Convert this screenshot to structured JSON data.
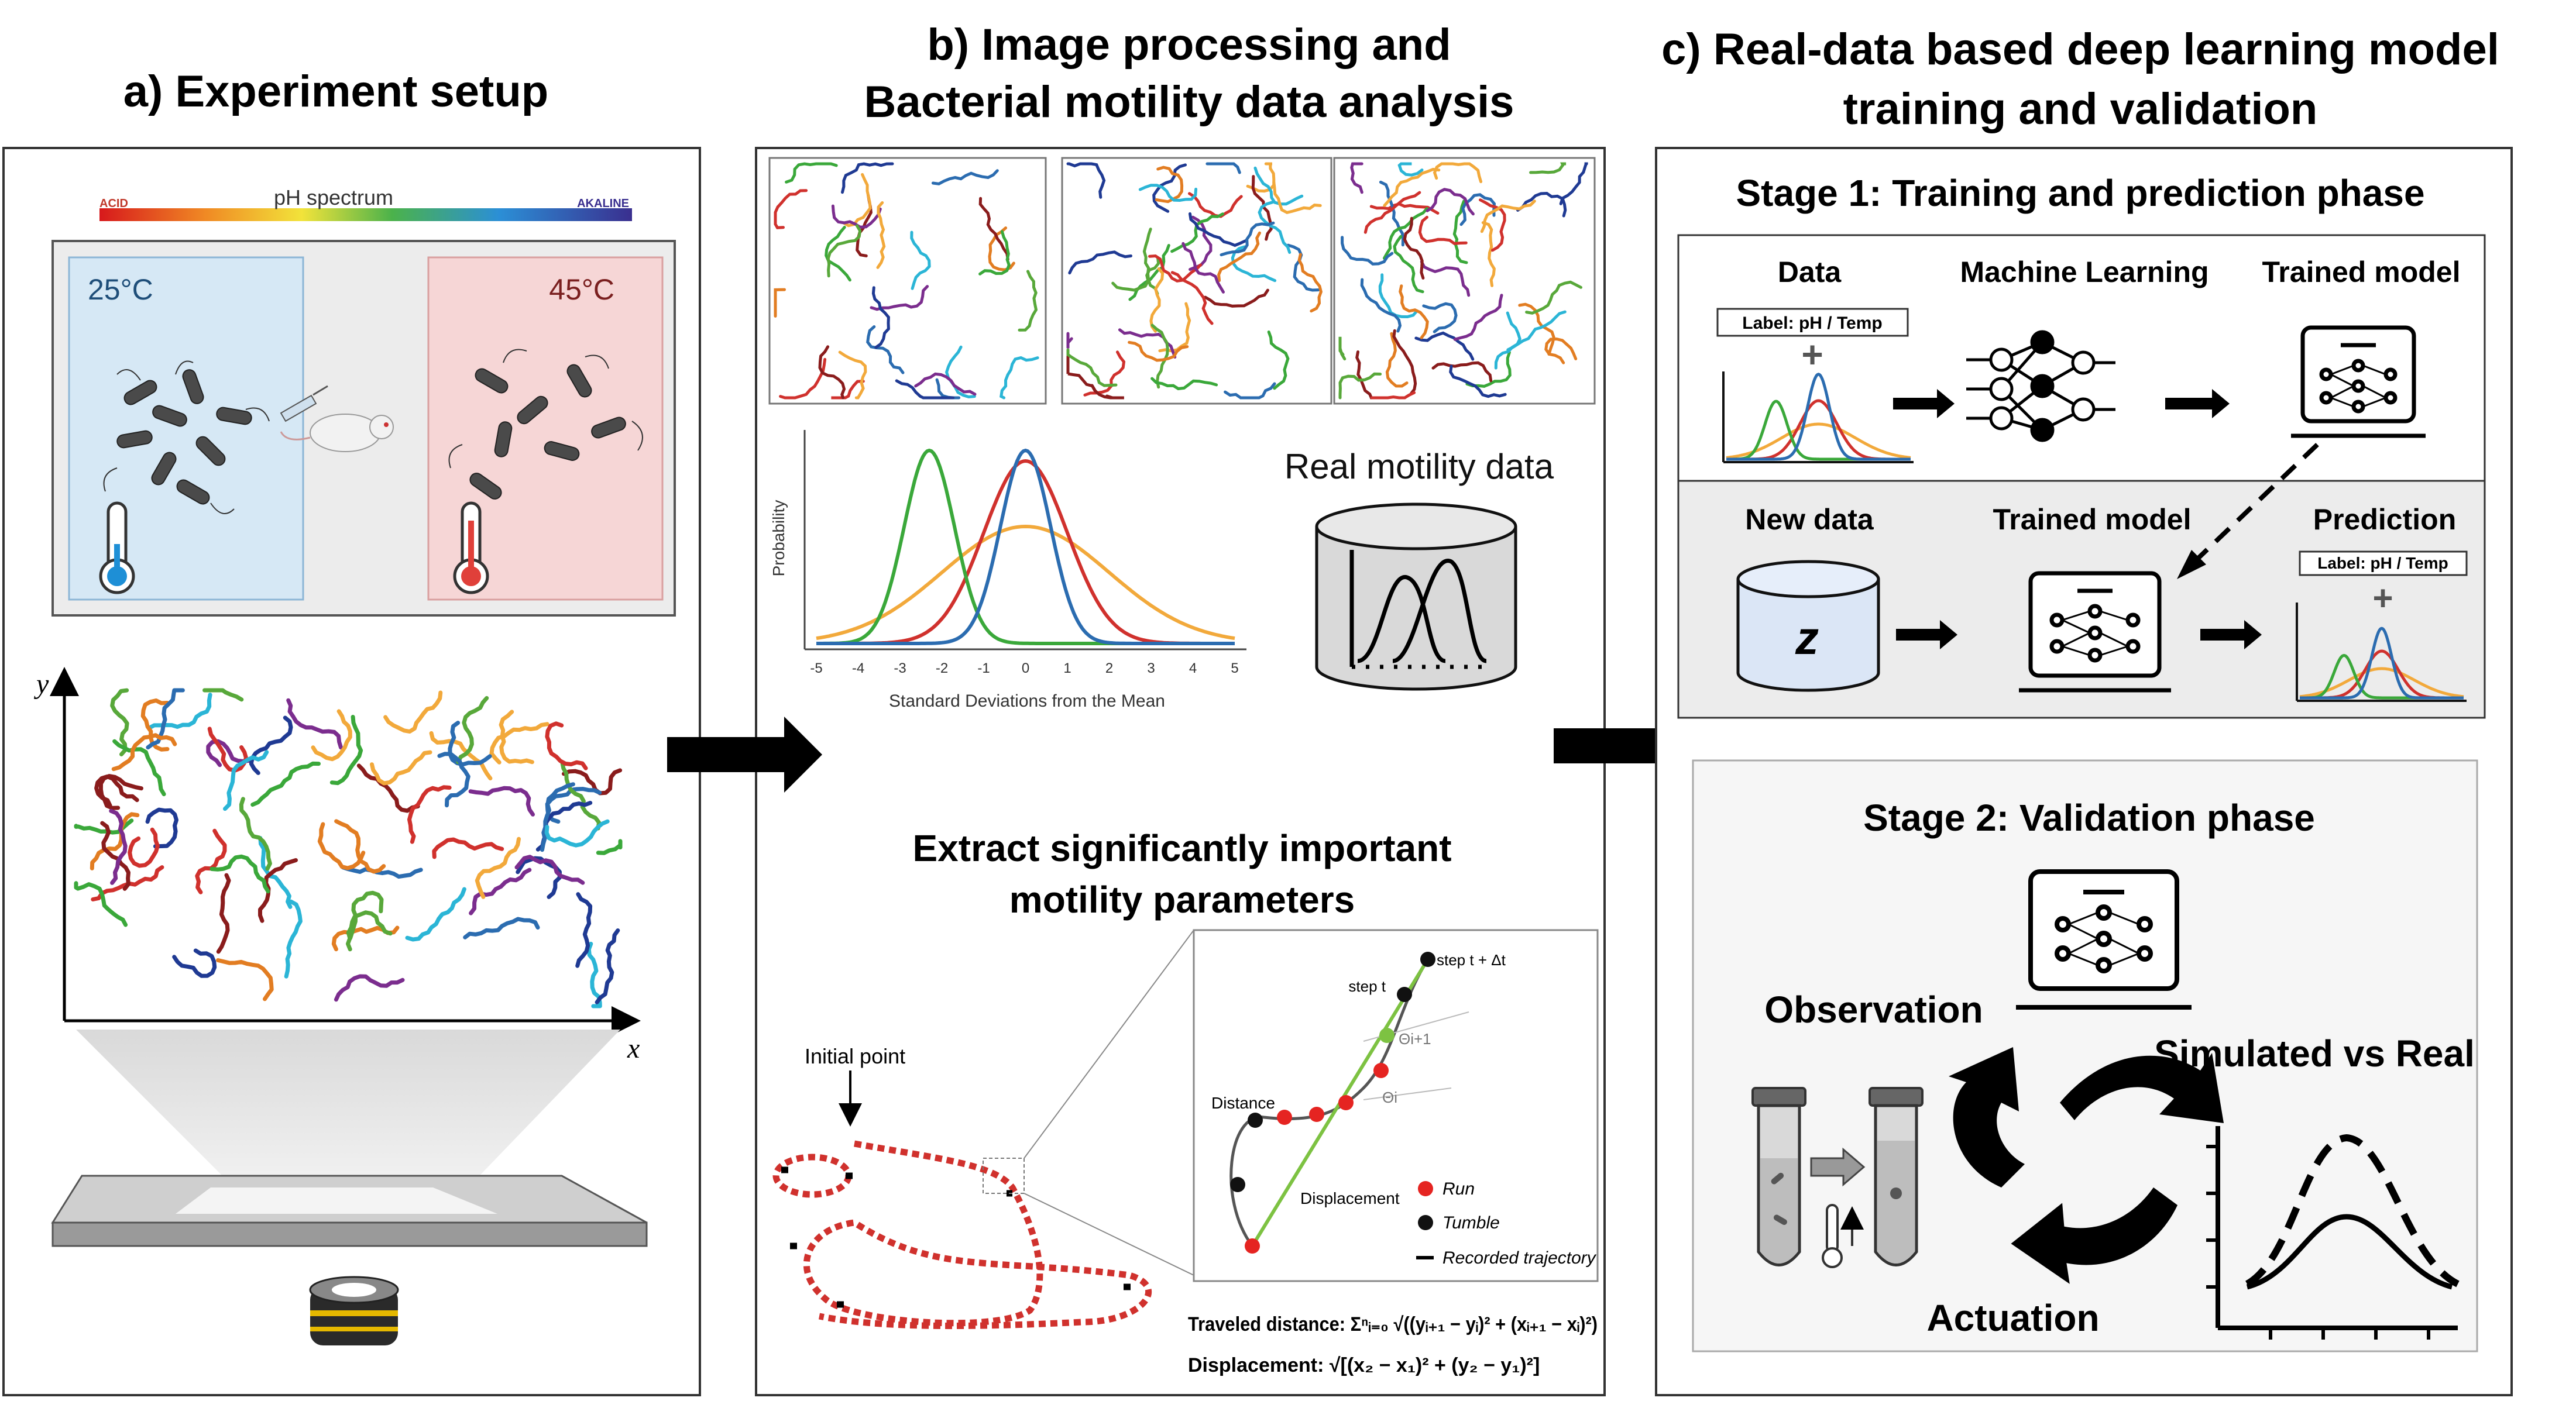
{
  "panel_a": {
    "title": "a) Experiment setup",
    "ph_spectrum": "pH spectrum",
    "acid": "ACID",
    "alkaline": "AKALINE",
    "cold_temp": "25°C",
    "hot_temp": "45°C",
    "axis_y": "y",
    "axis_x": "x"
  },
  "panel_b": {
    "title_line1": "b) Image processing and",
    "title_line2": "Bacterial motility data analysis",
    "real_motility": "Real motility data",
    "prob_label": "Probability",
    "std_label": "Standard Deviations from the Mean",
    "ticks": [
      "-5",
      "-4",
      "-3",
      "-2",
      "-1",
      "0",
      "1",
      "2",
      "3",
      "4",
      "5"
    ],
    "extract_line1": "Extract significantly important",
    "extract_line2": "motility parameters",
    "initial_point": "Initial point",
    "step_t": "step t",
    "step_t_dt": "step t + Δt",
    "theta_i1": "Θi+1",
    "theta_i": "Θi",
    "distance": "Distance",
    "displacement": "Displacement",
    "legend_run": "Run",
    "legend_tumble": "Tumble",
    "legend_recorded": "Recorded trajectory",
    "formula_traveled": "Traveled distance: Σⁿᵢ₌₀ √((yᵢ₊₁ − yᵢ)² + (xᵢ₊₁ − xᵢ)²)",
    "formula_displacement": "Displacement:  √[(x₂ − x₁)² + (y₂ − y₁)²]"
  },
  "panel_c": {
    "title_line1": "c) Real-data based deep learning model",
    "title_line2": "training and validation",
    "stage1": "Stage 1: Training and prediction phase",
    "data": "Data",
    "machine_learning": "Machine Learning",
    "trained_model": "Trained model",
    "label": "Label: pH / Temp",
    "new_data": "New data",
    "trained_model2": "Trained model",
    "prediction": "Prediction",
    "label2": "Label: pH / Temp",
    "z": "z",
    "stage2": "Stage 2: Validation phase",
    "observation": "Observation",
    "simulated_vs_real": "Simulated vs Real",
    "actuation": "Actuation"
  },
  "colors": {
    "blue": "#2b6cb0",
    "red": "#d0312d",
    "green": "#3aa83a",
    "orange": "#f2a93b",
    "cold_bg": "#d6e8f5",
    "hot_bg": "#f6d6d6"
  }
}
